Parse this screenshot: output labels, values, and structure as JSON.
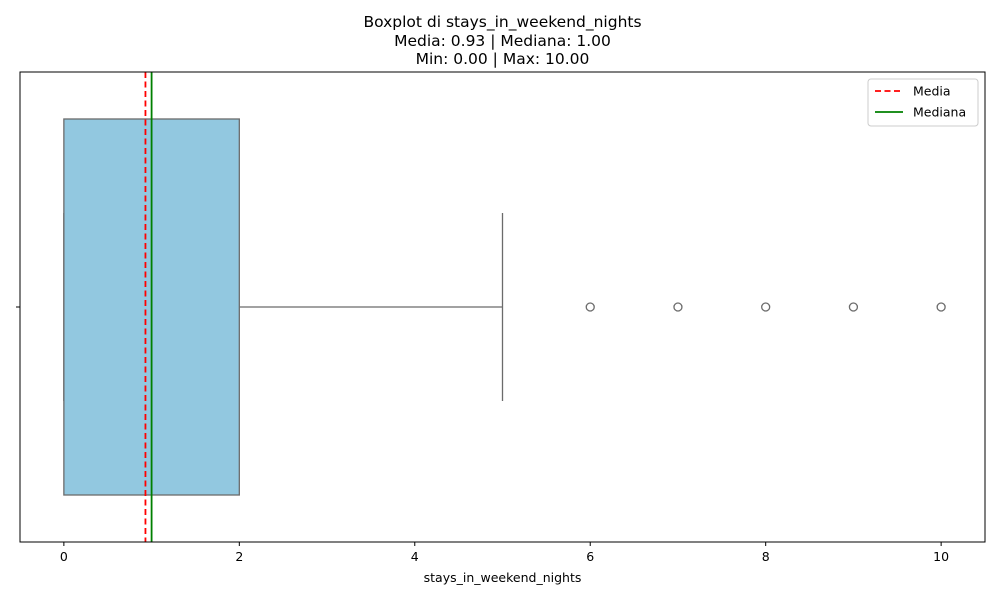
{
  "chart_data": {
    "type": "boxplot",
    "title_lines": [
      "Boxplot di stays_in_weekend_nights",
      "Media: 0.93 | Mediana: 1.00",
      "Min: 0.00 | Max: 10.00"
    ],
    "xlabel": "stays_in_weekend_nights",
    "ylabel": "",
    "xlim": [
      -0.5,
      10.5
    ],
    "xticks": [
      0,
      2,
      4,
      6,
      8,
      10
    ],
    "box": {
      "whisker_low": 0,
      "q1": 0,
      "median": 1,
      "q3": 2,
      "whisker_high": 5,
      "outliers": [
        6,
        7,
        8,
        9,
        10
      ]
    },
    "reference_lines": [
      {
        "name": "Media",
        "value": 0.93,
        "style": "dashed",
        "color": "#ff0000"
      },
      {
        "name": "Mediana",
        "value": 1.0,
        "style": "solid",
        "color": "#008000"
      }
    ],
    "legend": {
      "placement": "top-right",
      "entries": [
        "Media",
        "Mediana"
      ]
    },
    "grid": false,
    "colors": {
      "box_fill": "#92c8e0",
      "box_edge": "#6b6b6b"
    }
  }
}
